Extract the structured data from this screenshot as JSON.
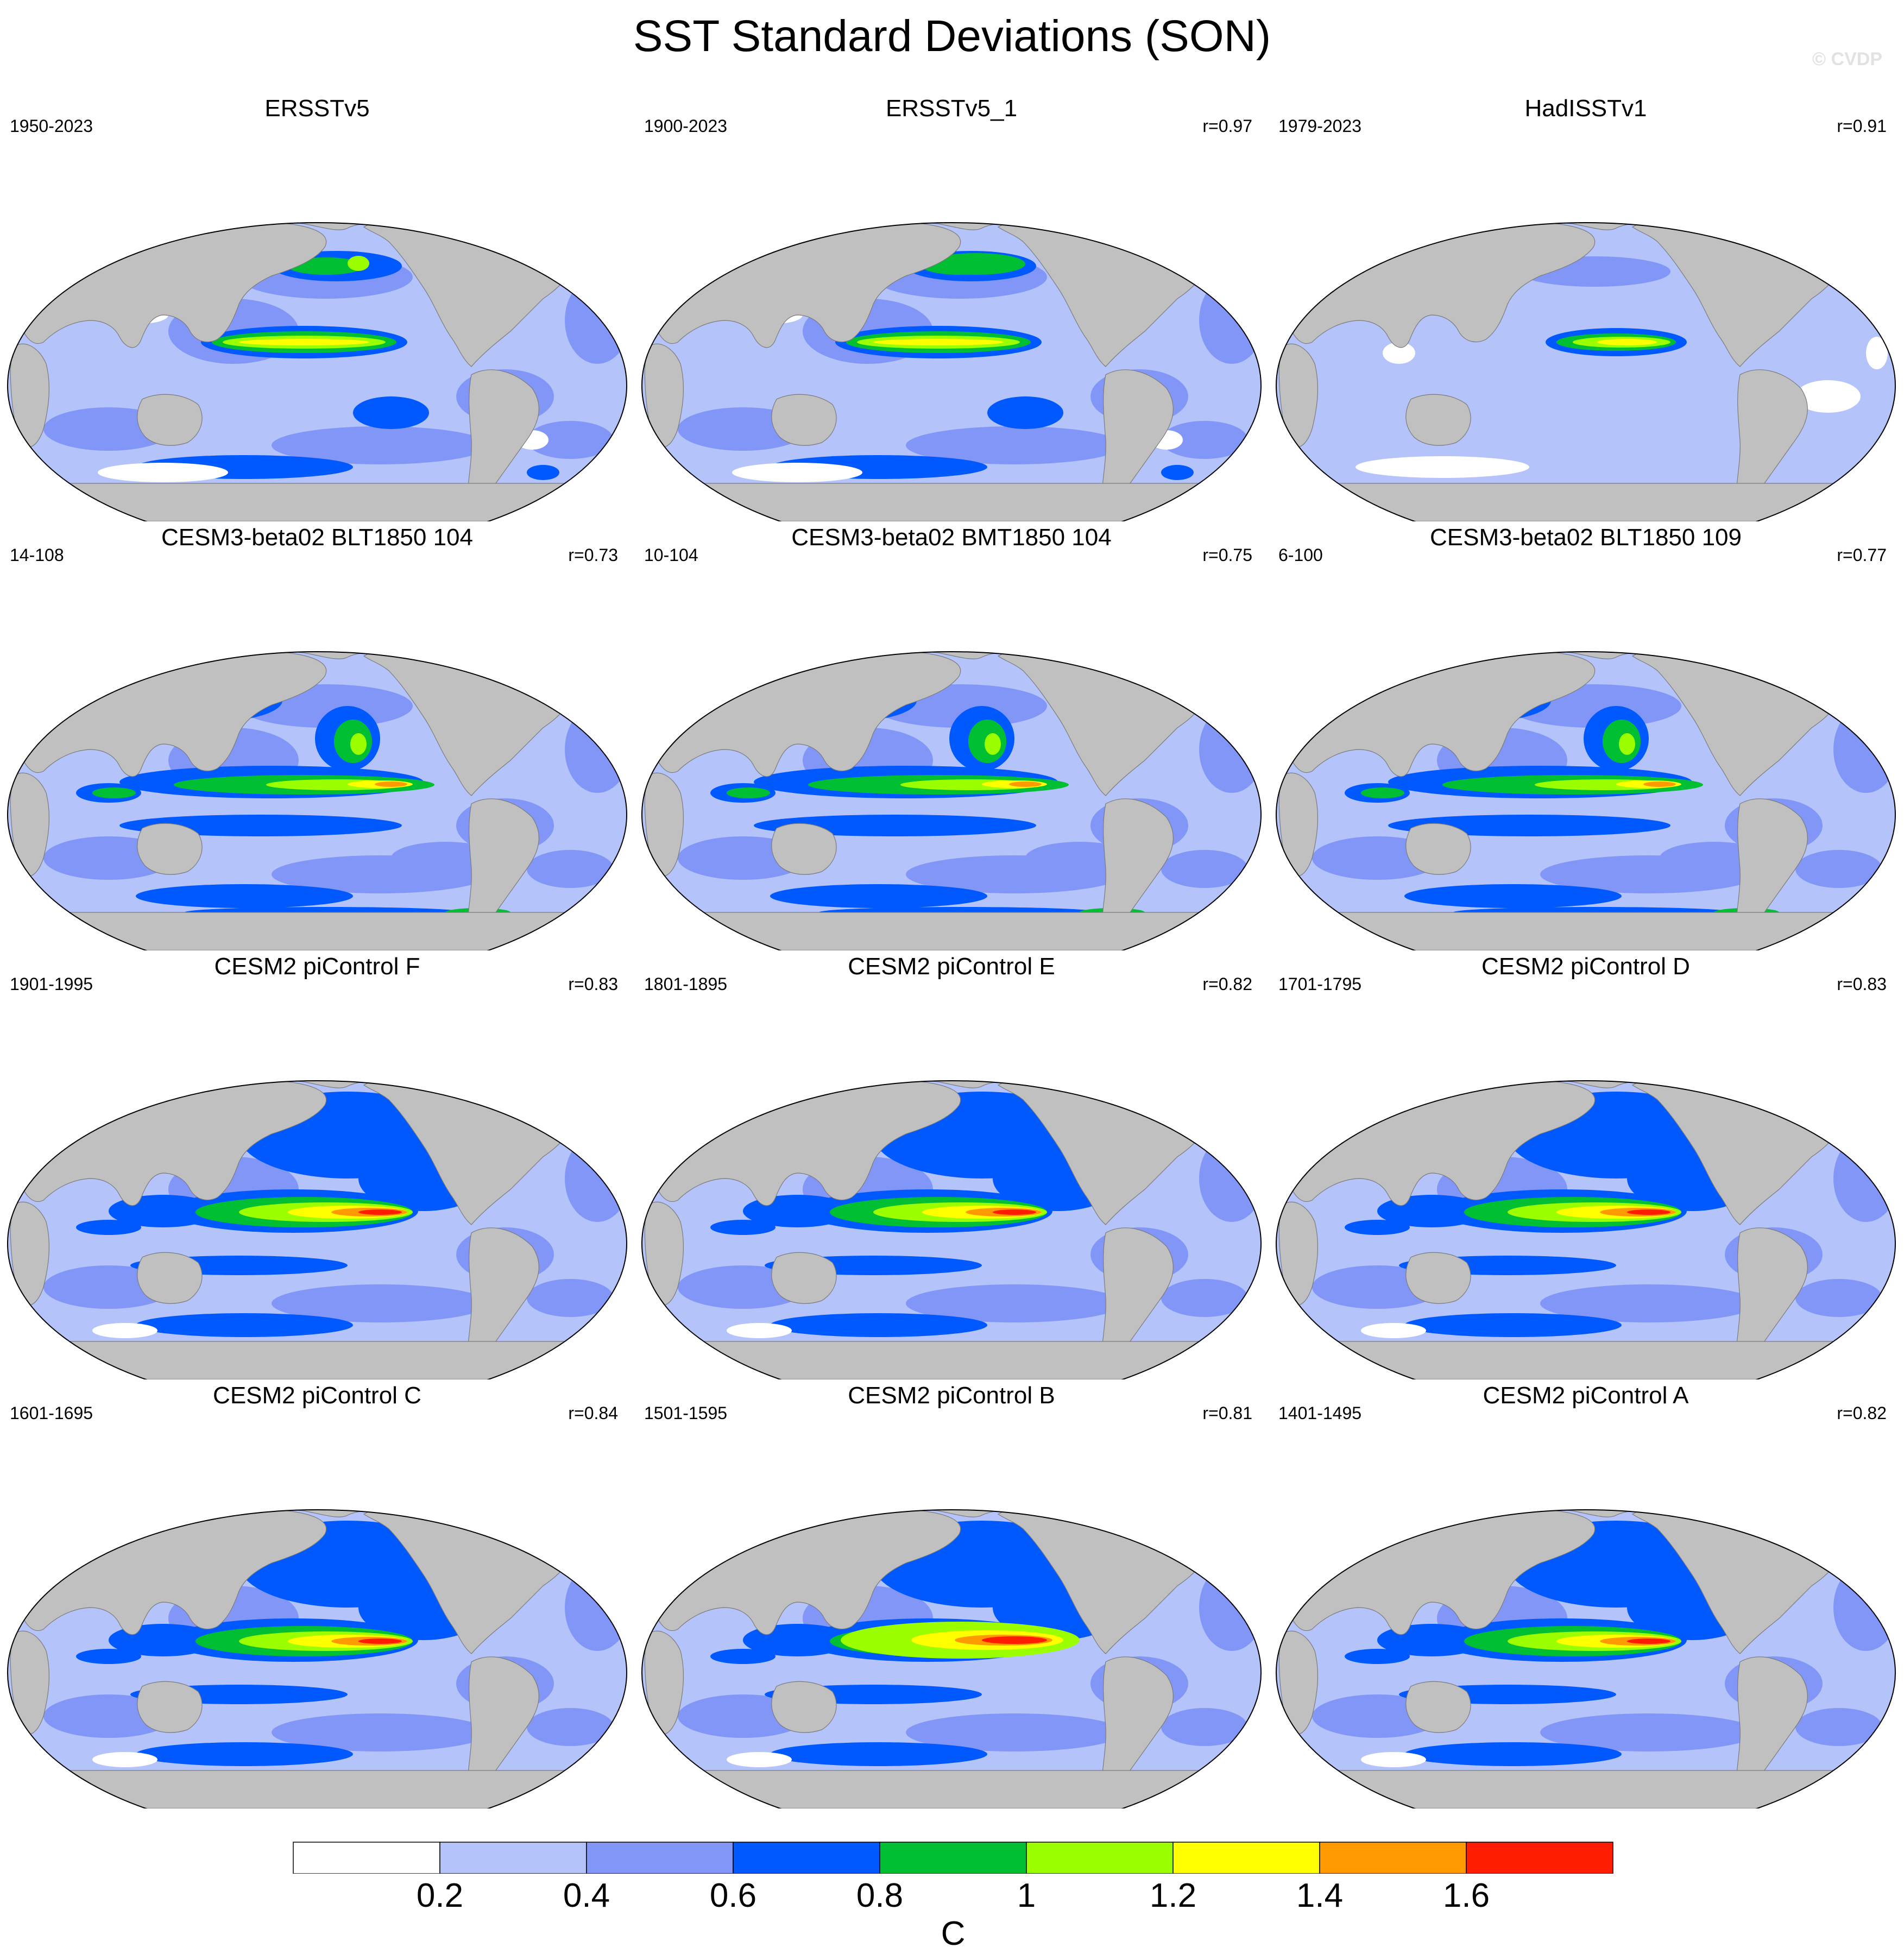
{
  "title": "SST Standard Deviations (SON)",
  "watermark": "© CVDP",
  "panels": [
    {
      "title": "ERSSTv5",
      "period": "1950-2023",
      "r": "",
      "pattern": "obs1"
    },
    {
      "title": "ERSSTv5_1",
      "period": "1900-2023",
      "r": "r=0.97",
      "pattern": "obs2"
    },
    {
      "title": "HadISSTv1",
      "period": "1979-2023",
      "r": "r=0.91",
      "pattern": "obs3"
    },
    {
      "title": "CESM3-beta02 BLT1850 104",
      "period": "14-108",
      "r": "r=0.73",
      "pattern": "cesm3"
    },
    {
      "title": "CESM3-beta02 BMT1850 104",
      "period": "10-104",
      "r": "r=0.75",
      "pattern": "cesm3"
    },
    {
      "title": "CESM3-beta02 BLT1850 109",
      "period": "6-100",
      "r": "r=0.77",
      "pattern": "cesm3"
    },
    {
      "title": "CESM2 piControl F",
      "period": "1901-1995",
      "r": "r=0.83",
      "pattern": "cesm2"
    },
    {
      "title": "CESM2 piControl E",
      "period": "1801-1895",
      "r": "r=0.82",
      "pattern": "cesm2"
    },
    {
      "title": "CESM2 piControl D",
      "period": "1701-1795",
      "r": "r=0.83",
      "pattern": "cesm2"
    },
    {
      "title": "CESM2 piControl C",
      "period": "1601-1695",
      "r": "r=0.84",
      "pattern": "cesm2"
    },
    {
      "title": "CESM2 piControl B",
      "period": "1501-1595",
      "r": "r=0.81",
      "pattern": "cesm2b"
    },
    {
      "title": "CESM2 piControl A",
      "period": "1401-1495",
      "r": "r=0.82",
      "pattern": "cesm2"
    }
  ],
  "colorbar": {
    "unit": "C",
    "levels": [
      "0.2",
      "0.4",
      "0.6",
      "0.8",
      "1",
      "1.2",
      "1.4",
      "1.6"
    ],
    "colors": [
      "#ffffff",
      "#b4c4fa",
      "#8296f7",
      "#0059ff",
      "#00bf32",
      "#9cff00",
      "#ffff00",
      "#ff9b00",
      "#ff1c00"
    ]
  },
  "land_color": "#c0c0c0"
}
